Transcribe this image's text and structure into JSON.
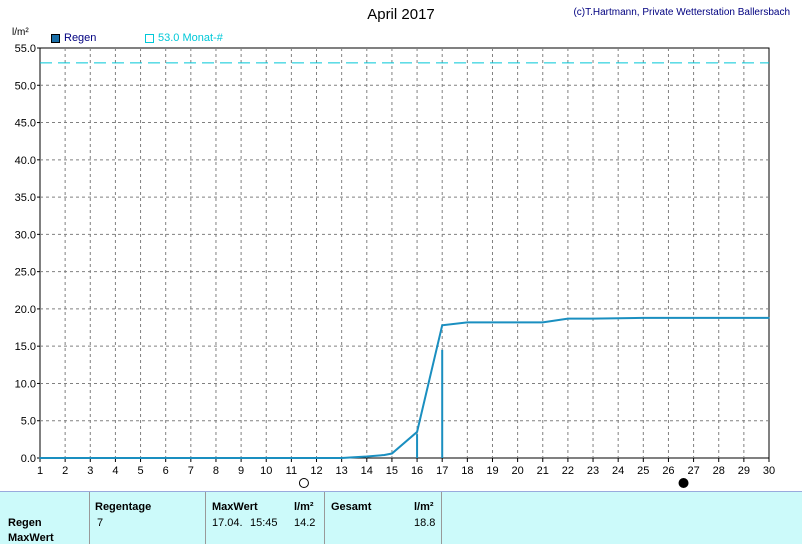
{
  "title": "April 2017",
  "credit": "(c)T.Hartmann, Private Wetterstation Ballersbach",
  "legend": {
    "rain": "Regen",
    "month": "53.0 Monat-#"
  },
  "colors": {
    "series": "#1a8fc0",
    "reference": "#00c8d8",
    "grid": "#808080"
  },
  "chart_data": {
    "type": "line",
    "ylabel": "l/m²",
    "xlim": [
      1,
      30
    ],
    "ylim": [
      0,
      55
    ],
    "yticks": [
      "0.0",
      "5.0",
      "10.0",
      "15.0",
      "20.0",
      "25.0",
      "30.0",
      "35.0",
      "40.0",
      "45.0",
      "50.0",
      "55.0"
    ],
    "xticks": [
      "1",
      "2",
      "3",
      "4",
      "5",
      "6",
      "7",
      "8",
      "9",
      "10",
      "11",
      "12",
      "13",
      "14",
      "15",
      "16",
      "17",
      "18",
      "19",
      "20",
      "21",
      "22",
      "23",
      "24",
      "25",
      "26",
      "27",
      "28",
      "29",
      "30"
    ],
    "grid": true,
    "series": [
      {
        "name": "Regen",
        "x": [
          1,
          13,
          14,
          14.7,
          15,
          16,
          17,
          18,
          19,
          21,
          22,
          23,
          25,
          30
        ],
        "y": [
          0,
          0,
          0.2,
          0.4,
          0.6,
          3.5,
          17.8,
          18.2,
          18.2,
          18.2,
          18.7,
          18.7,
          18.8,
          18.8
        ]
      }
    ],
    "bars": [
      {
        "x": 16,
        "y": 3.2
      },
      {
        "x": 17,
        "y": 14.5
      }
    ],
    "reference_line": {
      "name": "53.0 Monat-#",
      "y": 53.0
    },
    "moon_markers": [
      {
        "x": 11.5,
        "phase": "full-moon"
      },
      {
        "x": 26.6,
        "phase": "new-moon"
      }
    ]
  },
  "stats": {
    "headers": {
      "days": "Regentage",
      "max": "MaxWert",
      "unit1": "l/m²",
      "total": "Gesamt",
      "unit2": "l/m²"
    },
    "rows": [
      {
        "label": "Regen",
        "days": "7",
        "max_date": "17.04.",
        "max_time": "15:45",
        "max_value": "14.2",
        "total": "18.8"
      },
      {
        "label": "MaxWert"
      }
    ]
  }
}
